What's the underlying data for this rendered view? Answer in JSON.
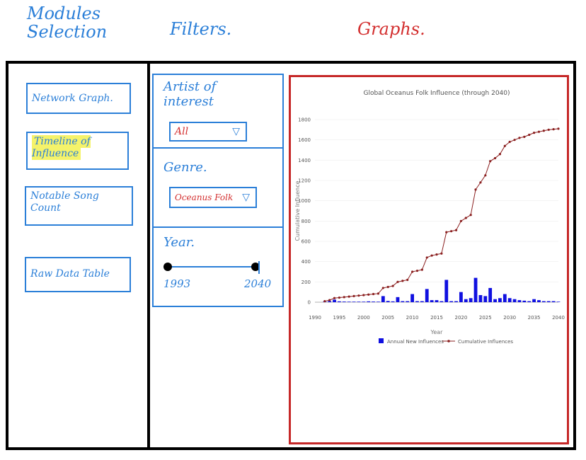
{
  "headers": {
    "modules": "Modules Selection",
    "filters": "Filters.",
    "graphs": "Graphs."
  },
  "modules": {
    "network": "Network Graph.",
    "timeline": "Timeline of Influence",
    "notable": "Notable Song Count",
    "raw": "Raw Data Table"
  },
  "filters": {
    "artist_label": "Artist of interest",
    "artist_value": "All",
    "genre_label": "Genre.",
    "genre_value": "Oceanus Folk",
    "year_label": "Year.",
    "year_min": "1993",
    "year_max": "2040"
  },
  "colors": {
    "blue_ink": "#2b7fd8",
    "red_ink": "#c62828",
    "highlight": "#f5f36a",
    "bar": "#1010e0",
    "line": "#8b2020"
  },
  "chart_data": {
    "type": "bar+line",
    "title": "Global Oceanus Folk Influence (through 2040)",
    "xlabel": "Year",
    "ylabel": "Cumulative Influence",
    "xlim": [
      1990,
      2040
    ],
    "ylim": [
      0,
      1800
    ],
    "xticks": [
      1990,
      1995,
      2000,
      2005,
      2010,
      2015,
      2020,
      2025,
      2030,
      2035,
      2040
    ],
    "yticks": [
      0,
      200,
      400,
      600,
      800,
      1000,
      1200,
      1400,
      1600,
      1800
    ],
    "legend": "bottom",
    "series": [
      {
        "name": "Annual New Influences",
        "type": "bar",
        "x": [
          1992,
          1993,
          1994,
          1995,
          1996,
          1997,
          1998,
          1999,
          2000,
          2001,
          2002,
          2003,
          2004,
          2005,
          2006,
          2007,
          2008,
          2009,
          2010,
          2011,
          2012,
          2013,
          2014,
          2015,
          2016,
          2017,
          2018,
          2019,
          2020,
          2021,
          2022,
          2023,
          2024,
          2025,
          2026,
          2027,
          2028,
          2029,
          2030,
          2031,
          2032,
          2033,
          2034,
          2035,
          2036,
          2037,
          2038,
          2039,
          2040
        ],
        "values": [
          5,
          10,
          25,
          8,
          6,
          5,
          5,
          5,
          5,
          8,
          6,
          5,
          60,
          12,
          8,
          50,
          10,
          10,
          80,
          10,
          10,
          130,
          20,
          20,
          10,
          220,
          10,
          10,
          100,
          30,
          40,
          240,
          70,
          60,
          140,
          30,
          40,
          80,
          40,
          30,
          20,
          15,
          10,
          30,
          20,
          10,
          10,
          10,
          5
        ]
      },
      {
        "name": "Cumulative Influences",
        "type": "line",
        "x": [
          1992,
          1993,
          1994,
          1995,
          1996,
          1997,
          1998,
          1999,
          2000,
          2001,
          2002,
          2003,
          2004,
          2005,
          2006,
          2007,
          2008,
          2009,
          2010,
          2011,
          2012,
          2013,
          2014,
          2015,
          2016,
          2017,
          2018,
          2019,
          2020,
          2021,
          2022,
          2023,
          2024,
          2025,
          2026,
          2027,
          2028,
          2029,
          2030,
          2031,
          2032,
          2033,
          2034,
          2035,
          2036,
          2037,
          2038,
          2039,
          2040
        ],
        "values": [
          10,
          20,
          40,
          45,
          50,
          55,
          60,
          65,
          70,
          75,
          80,
          85,
          140,
          150,
          160,
          200,
          210,
          220,
          300,
          310,
          320,
          440,
          460,
          470,
          480,
          690,
          700,
          710,
          800,
          830,
          860,
          1110,
          1180,
          1250,
          1390,
          1420,
          1460,
          1540,
          1580,
          1600,
          1620,
          1630,
          1650,
          1670,
          1680,
          1690,
          1700,
          1705,
          1710
        ]
      }
    ]
  }
}
